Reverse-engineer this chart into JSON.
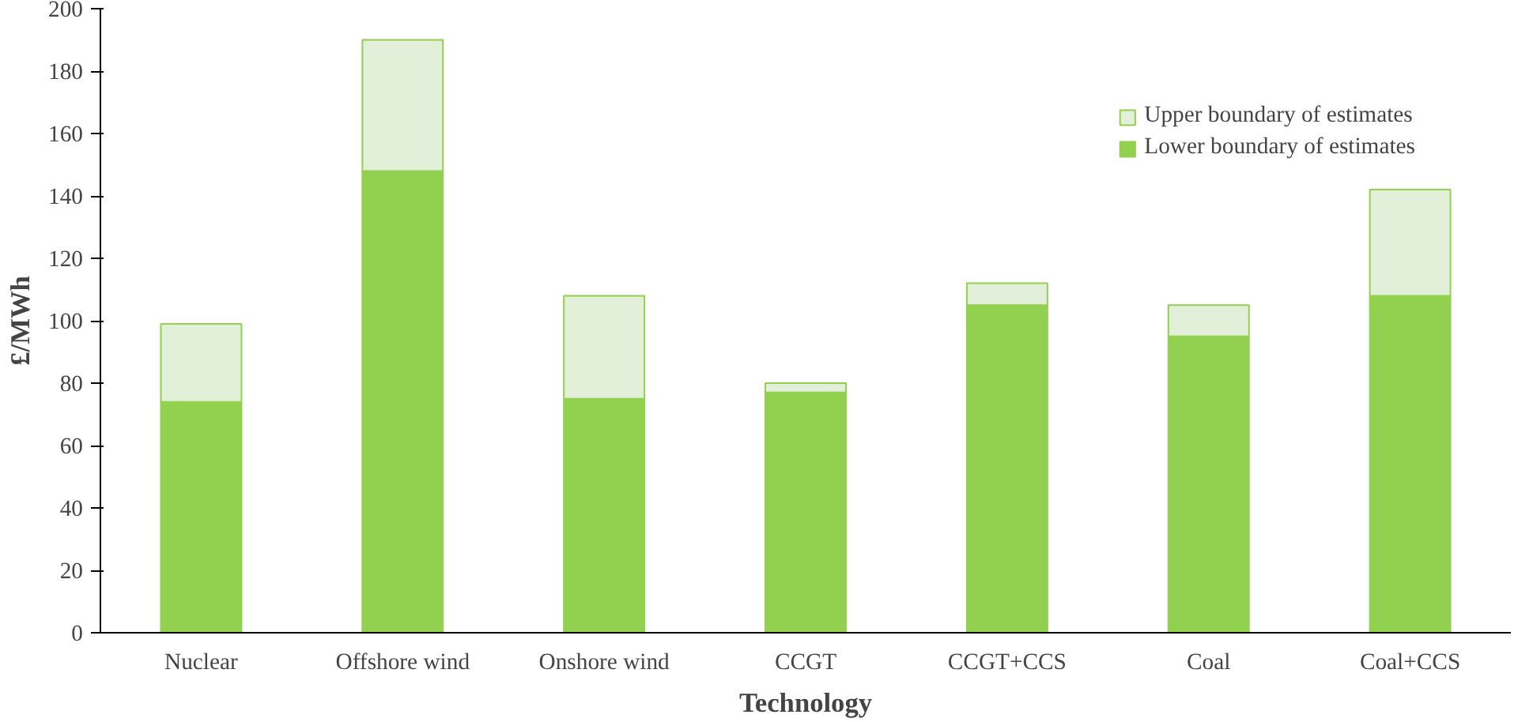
{
  "chart_data": {
    "type": "bar",
    "stacked": true,
    "xlabel": "Technology",
    "ylabel": "£/MWh",
    "categories": [
      "Nuclear",
      "Offshore wind",
      "Onshore wind",
      "CCGT",
      "CCGT+CCS",
      "Coal",
      "Coal+CCS"
    ],
    "series": [
      {
        "name": "Lower boundary of estimates",
        "color": "#92d050",
        "values": [
          74,
          148,
          75,
          77,
          105,
          95,
          108
        ]
      },
      {
        "name": "Upper boundary of estimates",
        "color": "#e2efd9",
        "values": [
          25,
          42,
          33,
          3,
          7,
          10,
          34
        ]
      }
    ],
    "ylim": [
      0,
      200
    ],
    "yticks": [
      0,
      20,
      40,
      60,
      80,
      100,
      120,
      140,
      160,
      180,
      200
    ],
    "grid": false,
    "legend": "top right"
  }
}
